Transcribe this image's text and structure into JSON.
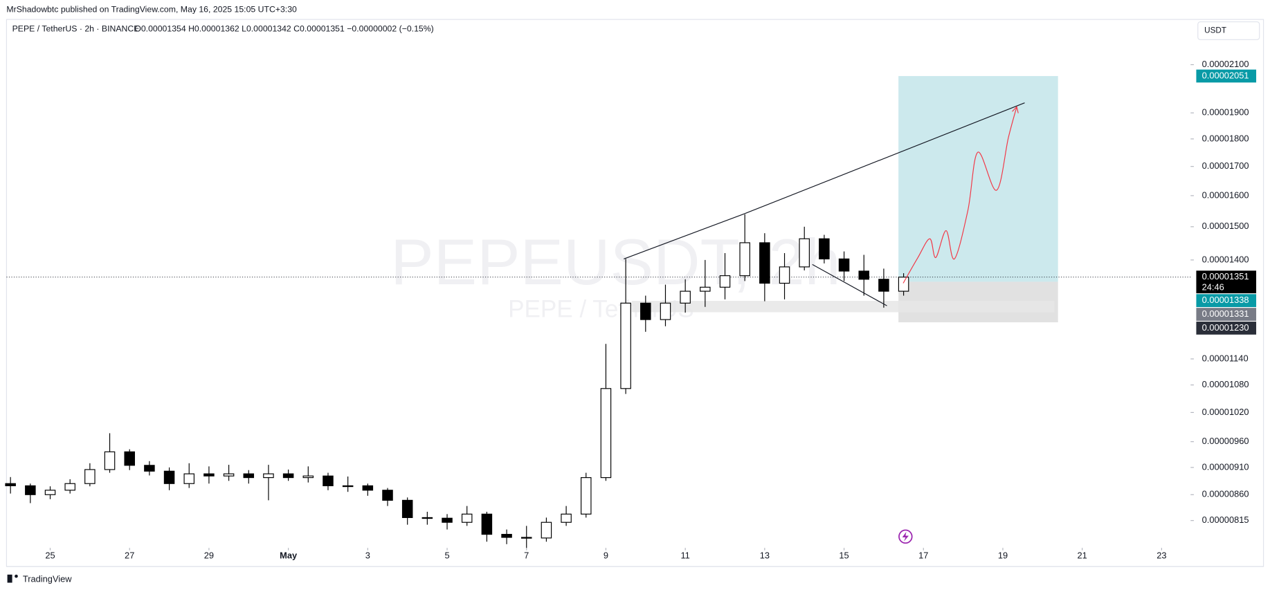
{
  "header": {
    "published": "MrShadowbtc published on TradingView.com, May 16, 2025 15:05 UTC+3:30",
    "symbol": "PEPE / TetherUS · 2h · BINANCE",
    "ohlc": "O0.00001354 H0.00001362 L0.00001342 C0.00001351 −0.00000002 (−0.15%)",
    "currency": "USDT"
  },
  "footer": {
    "brand": "TradingView"
  },
  "chart_data": {
    "type": "candlestick",
    "watermark": "PEPEUSDT, 2h",
    "watermark_subtitle": "PEPE / TetherUS",
    "x": [
      24,
      24.5,
      25,
      25.5,
      26,
      26.5,
      27,
      27.5,
      28,
      28.5,
      29,
      29.5,
      30,
      30.5,
      31,
      31.5,
      32,
      32.5,
      33,
      33.5,
      34,
      34.5,
      35,
      35.5,
      36,
      36.5,
      37,
      37.5,
      38,
      38.5,
      39,
      39.5,
      40,
      40.5,
      41,
      41.5,
      42,
      42.5,
      43,
      43.5,
      44,
      44.5,
      45,
      45.5,
      46,
      46.5
    ],
    "open": [
      8.8e-06,
      8.76e-06,
      8.6e-06,
      8.68e-06,
      8.8e-06,
      9.06e-06,
      9.4e-06,
      9.14e-06,
      9.03e-06,
      8.8e-06,
      8.98e-06,
      8.94e-06,
      8.98e-06,
      8.91e-06,
      8.98e-06,
      8.91e-06,
      8.94e-06,
      8.76e-06,
      8.76e-06,
      8.68e-06,
      8.5e-06,
      8.2e-06,
      8.19e-06,
      8.12e-06,
      8.26e-06,
      7.92e-06,
      7.87e-06,
      7.86e-06,
      8.12e-06,
      8.26e-06,
      8.91e-06,
      1.072e-05,
      1.28e-05,
      1.237e-05,
      1.28e-05,
      1.312e-05,
      1.323e-05,
      1.355e-05,
      1.451e-05,
      1.334e-05,
      1.38e-05,
      1.463e-05,
      1.403e-05,
      1.368e-05,
      1.345e-05,
      1.312e-05
    ],
    "high": [
      8.92e-06,
      8.8e-06,
      8.75e-06,
      8.88e-06,
      9.18e-06,
      9.77e-06,
      9.45e-06,
      9.22e-06,
      9.1e-06,
      9.18e-06,
      9.12e-06,
      9.15e-06,
      9.05e-06,
      9.15e-06,
      9.06e-06,
      9.12e-06,
      9e-06,
      8.93e-06,
      8.8e-06,
      8.72e-06,
      8.55e-06,
      8.3e-06,
      8.26e-06,
      8.4e-06,
      8.3e-06,
      8e-06,
      8.06e-06,
      8.2e-06,
      8.4e-06,
      9e-06,
      1.176e-05,
      1.403e-05,
      1.3e-05,
      1.33e-05,
      1.345e-05,
      1.4e-05,
      1.42e-05,
      1.539e-05,
      1.48e-05,
      1.42e-05,
      1.5e-05,
      1.475e-05,
      1.425e-05,
      1.415e-05,
      1.375e-05,
      1.362e-05
    ],
    "low": [
      8.62e-06,
      8.45e-06,
      8.52e-06,
      8.62e-06,
      8.75e-06,
      9e-06,
      9.05e-06,
      8.95e-06,
      8.68e-06,
      8.72e-06,
      8.8e-06,
      8.85e-06,
      8.8e-06,
      8.5e-06,
      8.85e-06,
      8.82e-06,
      8.68e-06,
      8.65e-06,
      8.58e-06,
      8.4e-06,
      8.08e-06,
      8.08e-06,
      8e-06,
      8.06e-06,
      7.8e-06,
      7.76e-06,
      7.7e-06,
      7.8e-06,
      8.06e-06,
      8.2e-06,
      8.85e-06,
      1.06e-05,
      1.206e-05,
      1.22e-05,
      1.255e-05,
      1.27e-05,
      1.29e-05,
      1.34e-05,
      1.285e-05,
      1.29e-05,
      1.37e-05,
      1.39e-05,
      1.34e-05,
      1.3e-05,
      1.268e-05,
      1.3e-05
    ],
    "close": [
      8.76e-06,
      8.6e-06,
      8.68e-06,
      8.8e-06,
      9.06e-06,
      9.4e-06,
      9.14e-06,
      9.03e-06,
      8.8e-06,
      8.98e-06,
      8.94e-06,
      8.98e-06,
      8.91e-06,
      8.98e-06,
      8.91e-06,
      8.94e-06,
      8.76e-06,
      8.76e-06,
      8.68e-06,
      8.5e-06,
      8.2e-06,
      8.19e-06,
      8.12e-06,
      8.26e-06,
      7.92e-06,
      7.87e-06,
      7.86e-06,
      8.12e-06,
      8.26e-06,
      8.91e-06,
      1.072e-05,
      1.28e-05,
      1.237e-05,
      1.28e-05,
      1.312e-05,
      1.323e-05,
      1.355e-05,
      1.451e-05,
      1.334e-05,
      1.38e-05,
      1.463e-05,
      1.403e-05,
      1.368e-05,
      1.345e-05,
      1.312e-05,
      1.351e-05
    ],
    "up_color": "#ffffff",
    "down_color": "#000000",
    "xlim": [
      23.9,
      53.73
    ],
    "xticks": [
      25,
      27,
      29,
      {
        "value": 31,
        "label": "May"
      },
      {
        "value": 33,
        "label": "3"
      },
      {
        "value": 35,
        "label": "5"
      },
      {
        "value": 37,
        "label": "7"
      },
      {
        "value": 39,
        "label": "9"
      },
      {
        "value": 41,
        "label": "11"
      },
      {
        "value": 43,
        "label": "13"
      },
      {
        "value": 45,
        "label": "15"
      },
      {
        "value": 47,
        "label": "17"
      },
      {
        "value": 49,
        "label": "19"
      },
      {
        "value": 51,
        "label": "21"
      },
      {
        "value": 53,
        "label": "23"
      }
    ],
    "ylim": [
      7.726e-06,
      2.303e-05
    ],
    "log_scale": true,
    "grid": false,
    "yticks": [
      {
        "value": 2.1e-05,
        "label": "0.00002100"
      },
      {
        "value": 1.9e-05,
        "label": "0.00001900"
      },
      {
        "value": 1.8e-05,
        "label": "0.00001800"
      },
      {
        "value": 1.7e-05,
        "label": "0.00001700"
      },
      {
        "value": 1.6e-05,
        "label": "0.00001600"
      },
      {
        "value": 1.5e-05,
        "label": "0.00001500"
      },
      {
        "value": 1.4e-05,
        "label": "0.00001400"
      },
      {
        "value": 1.14e-05,
        "label": "0.00001140"
      },
      {
        "value": 1.08e-05,
        "label": "0.00001080"
      },
      {
        "value": 1.02e-05,
        "label": "0.00001020"
      },
      {
        "value": 9.6e-06,
        "label": "0.00000960"
      },
      {
        "value": 9.1e-06,
        "label": "0.00000910"
      },
      {
        "value": 8.6e-06,
        "label": "0.00000860"
      },
      {
        "value": 8.15e-06,
        "label": "0.00000815"
      }
    ],
    "last_price": {
      "value": 1.351e-05,
      "label": "0.00001351",
      "countdown": "24:46",
      "color": "#000000"
    },
    "position": {
      "x": [
        46.37,
        50.39
      ],
      "target": {
        "value": 2.051e-05,
        "label": "0.00002051",
        "color": "#089aa6"
      },
      "entry": {
        "value": 1.338e-05,
        "label": "0.00001338",
        "color": "#089aa6"
      },
      "stop": {
        "value": 1.23e-05,
        "label": "0.00001230",
        "color": "#2a2e39"
      },
      "profit_color": "#cce9ed",
      "loss_color": "#e1e1e1"
    },
    "marker": {
      "value": 1.331e-05,
      "label": "0.00001331",
      "color": "#787b86"
    },
    "zone": {
      "x": [
        39.65,
        50.3
      ],
      "y": [
        1.256e-05,
        1.286e-05
      ],
      "color": "#e6e6e6"
    },
    "trendlines": [
      {
        "x": [
          39.45,
          42.45,
          49.55
        ],
        "y": [
          1.403e-05,
          1.539e-05,
          1.94e-05
        ]
      },
      {
        "x": [
          44.2,
          46.08
        ],
        "y": [
          1.387e-05,
          1.273e-05
        ]
      }
    ],
    "projection": {
      "color": "#f23645",
      "x": [
        46.49,
        46.86,
        47.16,
        47.31,
        47.57,
        47.78,
        48.12,
        48.37,
        48.84,
        49.14,
        49.35
      ],
      "y": [
        1.334e-05,
        1.407e-05,
        1.463e-05,
        1.407e-05,
        1.488e-05,
        1.403e-05,
        1.552e-05,
        1.751e-05,
        1.618e-05,
        1.805e-05,
        1.924e-05
      ]
    }
  }
}
